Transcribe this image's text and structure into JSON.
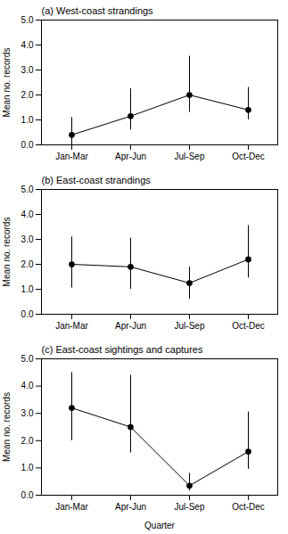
{
  "chart_data": [
    {
      "type": "line",
      "title": "(a) West-coast strandings",
      "categories": [
        "Jan-Mar",
        "Apr-Jun",
        "Jul-Sep",
        "Oct-Dec"
      ],
      "values": [
        0.4,
        1.15,
        2.0,
        1.4
      ],
      "yerr_low": [
        0.4,
        0.55,
        0.7,
        0.4
      ],
      "yerr_high": [
        0.7,
        1.1,
        1.55,
        0.9
      ],
      "ylabel": "Mean no. records",
      "ylim": [
        0,
        5
      ],
      "yticks": [
        0,
        1,
        2,
        3,
        4,
        5
      ],
      "color": "black",
      "marker": "circle",
      "grid": false
    },
    {
      "type": "line",
      "title": "(b) East-coast strandings",
      "categories": [
        "Jan-Mar",
        "Apr-Jun",
        "Jul-Sep",
        "Oct-Dec"
      ],
      "values": [
        2.0,
        1.9,
        1.25,
        2.2
      ],
      "yerr_low": [
        0.95,
        0.9,
        0.65,
        0.75
      ],
      "yerr_high": [
        1.1,
        1.15,
        0.65,
        1.35
      ],
      "ylabel": "Mean no. records",
      "ylim": [
        0,
        5
      ],
      "yticks": [
        0,
        1,
        2,
        3,
        4,
        5
      ],
      "color": "black",
      "marker": "circle",
      "grid": false
    },
    {
      "type": "line",
      "title": "(c) East-coast sightings and captures",
      "categories": [
        "Jan-Mar",
        "Apr-Jun",
        "Jul-Sep",
        "Oct-Dec"
      ],
      "values": [
        3.2,
        2.5,
        0.35,
        1.6
      ],
      "yerr_low": [
        1.2,
        0.95,
        0.2,
        0.65
      ],
      "yerr_high": [
        1.3,
        1.9,
        0.45,
        1.45
      ],
      "xlabel": "Quarter",
      "ylabel": "Mean no. records",
      "ylim": [
        0,
        5
      ],
      "yticks": [
        0,
        1,
        2,
        3,
        4,
        5
      ],
      "color": "black",
      "marker": "circle",
      "grid": false
    }
  ]
}
